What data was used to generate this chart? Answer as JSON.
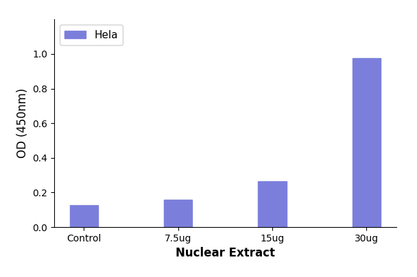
{
  "categories": [
    "Control",
    "7.5ug",
    "15ug",
    "30ug"
  ],
  "values": [
    0.125,
    0.16,
    0.265,
    0.975
  ],
  "bar_color": "#7b7fdb",
  "title": "",
  "xlabel": "Nuclear Extract",
  "ylabel": "OD (450nm)",
  "ylim": [
    0,
    1.2
  ],
  "yticks": [
    0.0,
    0.2,
    0.4,
    0.6,
    0.8,
    1.0
  ],
  "legend_label": "Hela",
  "legend_color": "#7b7fdb",
  "background_color": "#ffffff",
  "xlabel_fontsize": 12,
  "ylabel_fontsize": 12,
  "tick_fontsize": 10,
  "legend_fontsize": 11,
  "bar_width": 0.3
}
